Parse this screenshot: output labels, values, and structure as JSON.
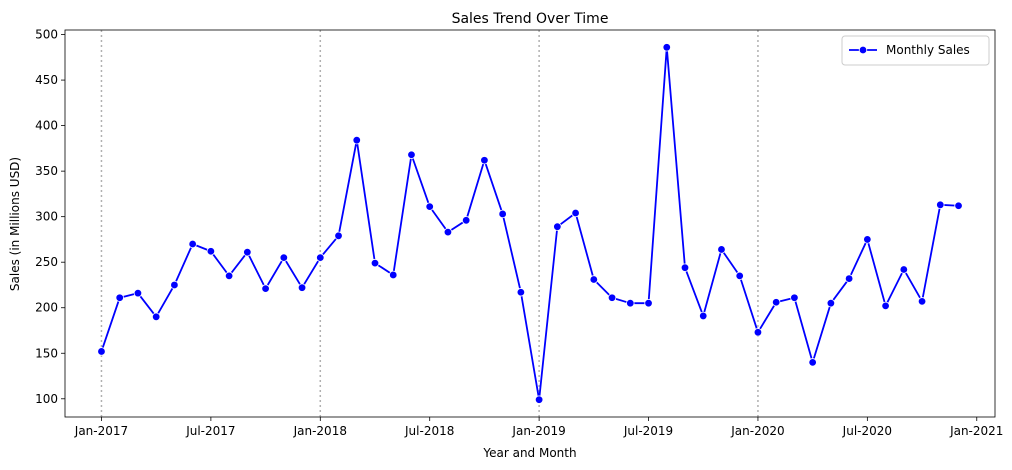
{
  "chart_data": {
    "type": "line",
    "title": "Sales Trend Over Time",
    "xlabel": "Year and Month",
    "ylabel": "Sales (in Millions USD)",
    "ylim": [
      80,
      505
    ],
    "xlim": [
      "2016-11",
      "2021-02"
    ],
    "yticks": [
      100,
      150,
      200,
      250,
      300,
      350,
      400,
      450,
      500
    ],
    "xticks": [
      {
        "value": "2017-01",
        "label": "Jan-2017"
      },
      {
        "value": "2017-07",
        "label": "Jul-2017"
      },
      {
        "value": "2018-01",
        "label": "Jan-2018"
      },
      {
        "value": "2018-07",
        "label": "Jul-2018"
      },
      {
        "value": "2019-01",
        "label": "Jan-2019"
      },
      {
        "value": "2019-07",
        "label": "Jul-2019"
      },
      {
        "value": "2020-01",
        "label": "Jan-2020"
      },
      {
        "value": "2020-07",
        "label": "Jul-2020"
      },
      {
        "value": "2021-01",
        "label": "Jan-2021"
      }
    ],
    "vlines": [
      "2017-01",
      "2018-01",
      "2019-01",
      "2020-01"
    ],
    "grid": false,
    "legend": "top-right",
    "series": [
      {
        "name": "Monthly Sales",
        "color": "#0000ff",
        "marker": "circle",
        "x": [
          "2017-01",
          "2017-02",
          "2017-03",
          "2017-04",
          "2017-05",
          "2017-06",
          "2017-07",
          "2017-08",
          "2017-09",
          "2017-10",
          "2017-11",
          "2017-12",
          "2018-01",
          "2018-02",
          "2018-03",
          "2018-04",
          "2018-05",
          "2018-06",
          "2018-07",
          "2018-08",
          "2018-09",
          "2018-10",
          "2018-11",
          "2018-12",
          "2019-01",
          "2019-02",
          "2019-03",
          "2019-04",
          "2019-05",
          "2019-06",
          "2019-07",
          "2019-08",
          "2019-09",
          "2019-10",
          "2019-11",
          "2019-12",
          "2020-01",
          "2020-02",
          "2020-03",
          "2020-04",
          "2020-05",
          "2020-06",
          "2020-07",
          "2020-08",
          "2020-09",
          "2020-10",
          "2020-11",
          "2020-12"
        ],
        "values": [
          152,
          211,
          216,
          190,
          225,
          270,
          262,
          235,
          261,
          221,
          255,
          222,
          255,
          279,
          384,
          249,
          236,
          368,
          311,
          283,
          296,
          362,
          303,
          217,
          99,
          289,
          304,
          231,
          211,
          205,
          205,
          486,
          244,
          191,
          264,
          235,
          173,
          206,
          211,
          140,
          205,
          232,
          275,
          202,
          242,
          207,
          313,
          312
        ]
      }
    ]
  }
}
